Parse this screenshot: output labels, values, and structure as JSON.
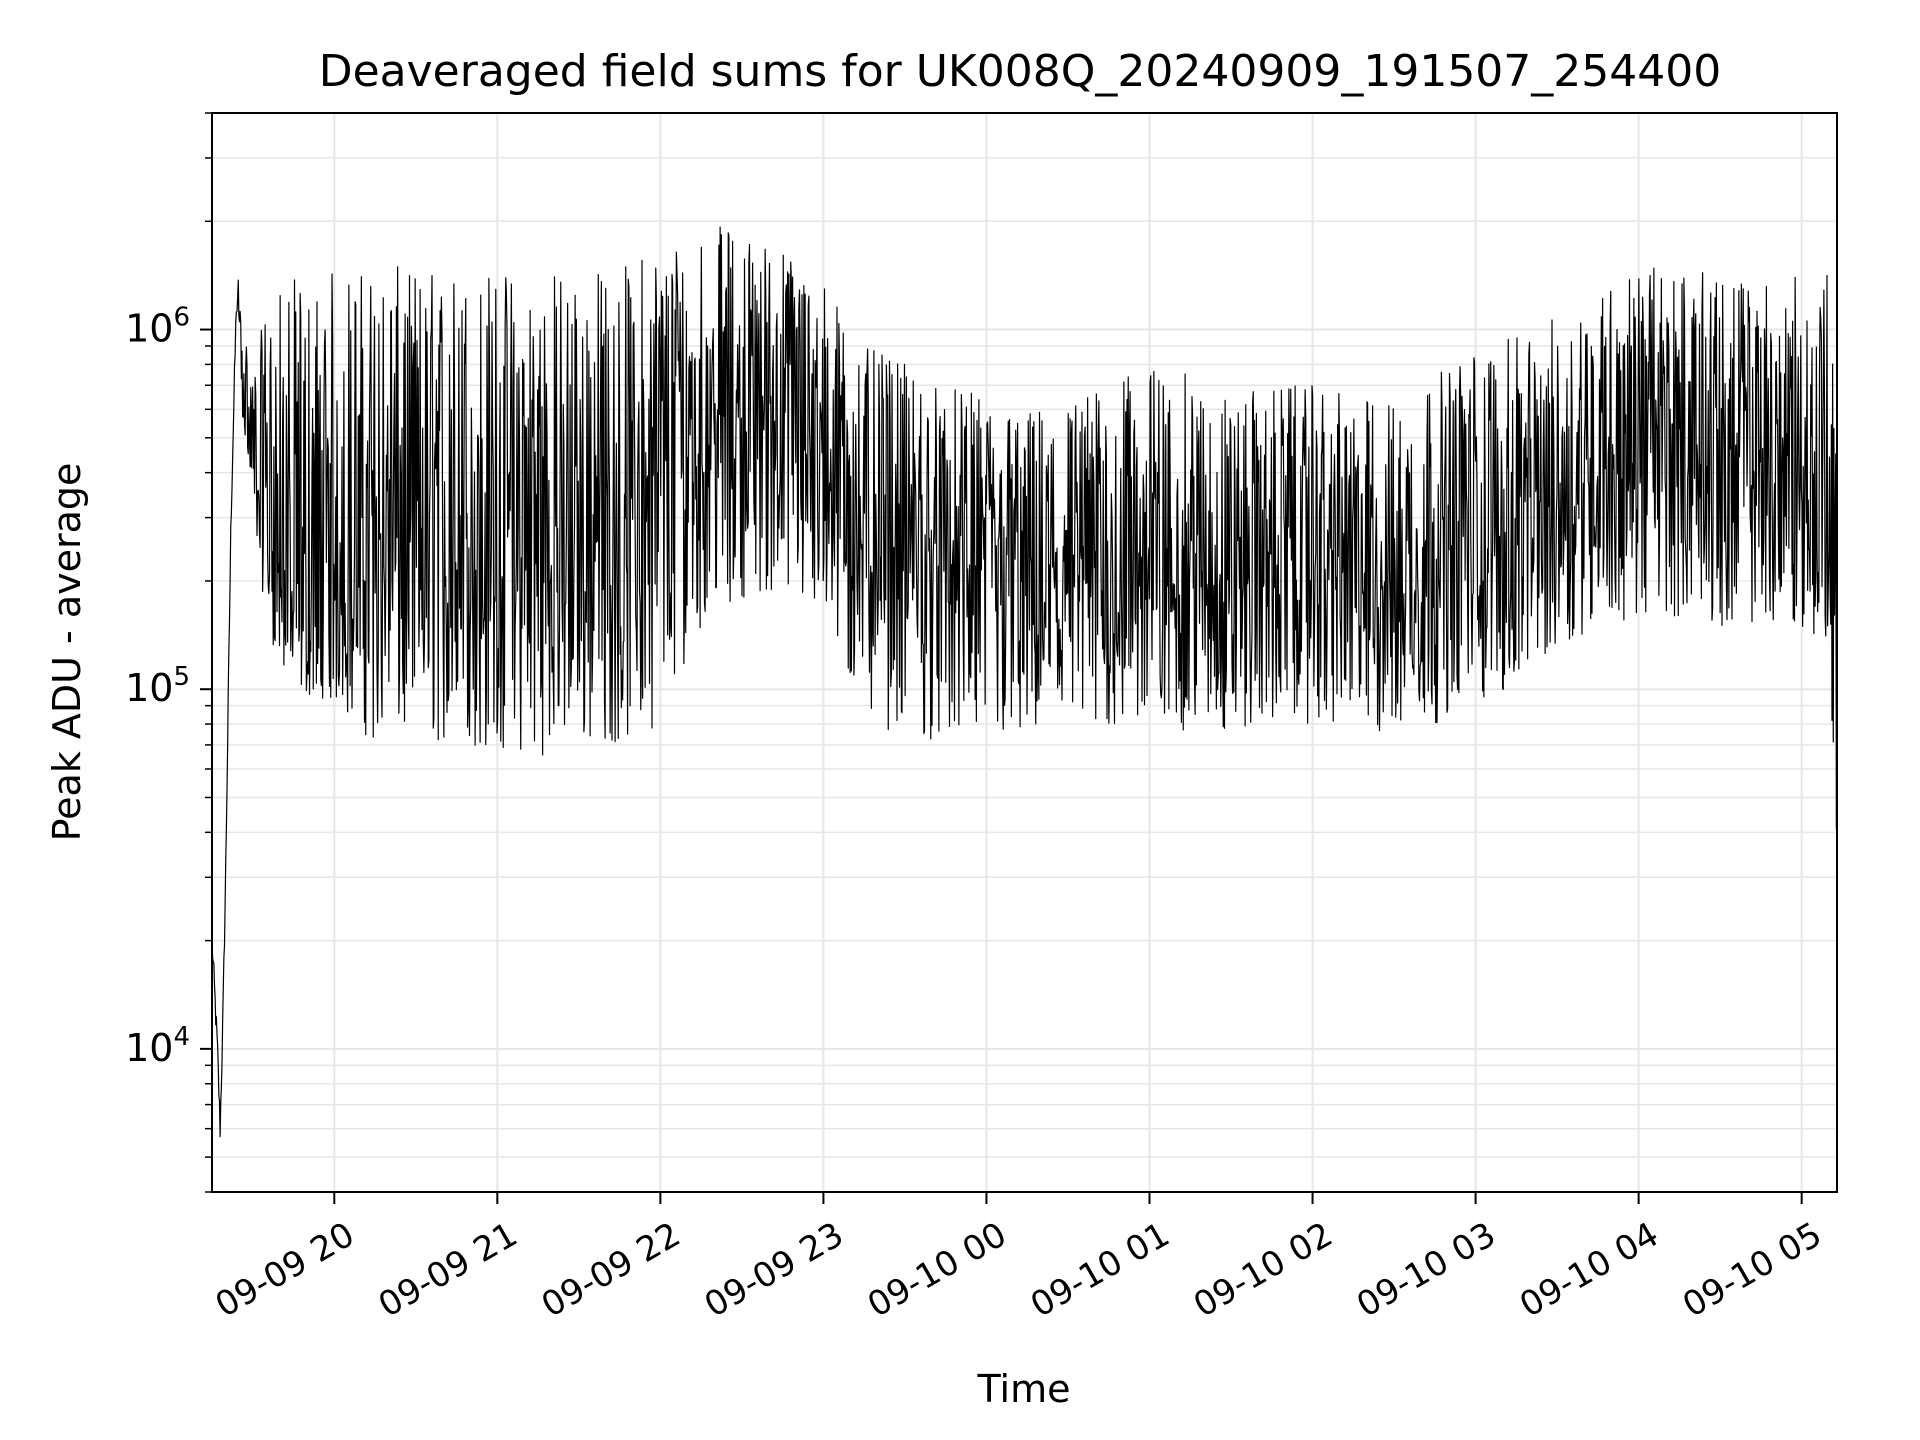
{
  "chart_data": {
    "type": "line",
    "title": "Deaveraged field sums for UK008Q_20240909_191507_254400",
    "xlabel": "Time",
    "ylabel": "Peak ADU - average",
    "yscale": "log",
    "ylim": [
      4000,
      4000000
    ],
    "xlim": [
      "2024-09-09 19:15",
      "2024-09-10 05:13"
    ],
    "grid": true,
    "line_color": "#000000",
    "grid_color": "#e6e6e6",
    "x_ticks": [
      {
        "value": "2024-09-09 20:00",
        "label": "09-09 20"
      },
      {
        "value": "2024-09-09 21:00",
        "label": "09-09 21"
      },
      {
        "value": "2024-09-09 22:00",
        "label": "09-09 22"
      },
      {
        "value": "2024-09-09 23:00",
        "label": "09-09 23"
      },
      {
        "value": "2024-09-10 00:00",
        "label": "09-10 00"
      },
      {
        "value": "2024-09-10 01:00",
        "label": "09-10 01"
      },
      {
        "value": "2024-09-10 02:00",
        "label": "09-10 02"
      },
      {
        "value": "2024-09-10 03:00",
        "label": "09-10 03"
      },
      {
        "value": "2024-09-10 04:00",
        "label": "09-10 04"
      },
      {
        "value": "2024-09-10 05:00",
        "label": "09-10 05"
      }
    ],
    "y_ticks": [
      {
        "value": 10000,
        "base": "10",
        "exp": "4"
      },
      {
        "value": 100000,
        "base": "10",
        "exp": "5"
      },
      {
        "value": 1000000,
        "base": "10",
        "exp": "6"
      }
    ],
    "series": [
      {
        "x": [
          "2024-09-09 19:15",
          "2024-09-09 19:17",
          "2024-09-09 19:18",
          "2024-09-09 19:19",
          "2024-09-09 19:20",
          "2024-09-09 19:22",
          "2024-09-09 19:24",
          "2024-09-09 19:26",
          "2024-09-09 19:28",
          "2024-09-09 19:31",
          "2024-09-09 19:35",
          "2024-09-09 19:40",
          "2024-09-09 19:45",
          "2024-09-09 19:50",
          "2024-09-09 19:55",
          "2024-09-09 20:00",
          "2024-09-09 20:15",
          "2024-09-09 20:30",
          "2024-09-09 20:45",
          "2024-09-09 21:00",
          "2024-09-09 21:15",
          "2024-09-09 21:30",
          "2024-09-09 21:45",
          "2024-09-09 22:00",
          "2024-09-09 22:15",
          "2024-09-09 22:30",
          "2024-09-09 22:45",
          "2024-09-09 23:00",
          "2024-09-09 23:15",
          "2024-09-09 23:30",
          "2024-09-09 23:45",
          "2024-09-10 00:00",
          "2024-09-10 00:15",
          "2024-09-10 00:30",
          "2024-09-10 00:45",
          "2024-09-10 01:00",
          "2024-09-10 01:15",
          "2024-09-10 01:30",
          "2024-09-10 01:45",
          "2024-09-10 02:00",
          "2024-09-10 02:15",
          "2024-09-10 02:30",
          "2024-09-10 02:45",
          "2024-09-10 03:00",
          "2024-09-10 03:15",
          "2024-09-10 03:30",
          "2024-09-10 03:45",
          "2024-09-10 04:00",
          "2024-09-10 04:15",
          "2024-09-10 04:30",
          "2024-09-10 04:45",
          "2024-09-10 05:00",
          "2024-09-10 05:10",
          "2024-09-10 05:13"
        ],
        "y": [
          20000,
          10000,
          6000,
          12000,
          30000,
          300000,
          1200000,
          900000,
          550000,
          420000,
          300000,
          220000,
          170000,
          150000,
          150000,
          200000,
          260000,
          250000,
          250000,
          240000,
          240000,
          250000,
          260000,
          400000,
          550000,
          600000,
          650000,
          450000,
          300000,
          250000,
          220000,
          230000,
          200000,
          200000,
          210000,
          220000,
          200000,
          210000,
          230000,
          240000,
          220000,
          200000,
          230000,
          250000,
          260000,
          350000,
          450000,
          480000,
          500000,
          420000,
          400000,
          380000,
          300000,
          35000
        ],
        "y_low": [
          10000,
          6000,
          5000,
          10000,
          20000,
          200000,
          900000,
          600000,
          400000,
          250000,
          160000,
          110000,
          100000,
          95000,
          95000,
          90000,
          70000,
          70000,
          70000,
          65000,
          65000,
          70000,
          70000,
          80000,
          150000,
          180000,
          180000,
          150000,
          80000,
          75000,
          70000,
          70000,
          70000,
          70000,
          75000,
          80000,
          75000,
          75000,
          80000,
          80000,
          75000,
          70000,
          80000,
          90000,
          100000,
          130000,
          150000,
          150000,
          160000,
          150000,
          150000,
          150000,
          120000,
          35000
        ],
        "y_high": [
          25000,
          18000,
          15000,
          20000,
          40000,
          500000,
          1500000,
          1300000,
          900000,
          800000,
          1200000,
          1300000,
          1400000,
          1400000,
          1400000,
          1500000,
          1500000,
          1500000,
          1500000,
          1500000,
          1500000,
          1500000,
          1500000,
          1800000,
          2000000,
          1900000,
          1700000,
          1400000,
          900000,
          800000,
          700000,
          650000,
          600000,
          650000,
          700000,
          800000,
          750000,
          650000,
          700000,
          700000,
          650000,
          650000,
          750000,
          900000,
          950000,
          1100000,
          1300000,
          1500000,
          1500000,
          1400000,
          1400000,
          1400000,
          1500000,
          400000
        ]
      }
    ]
  }
}
